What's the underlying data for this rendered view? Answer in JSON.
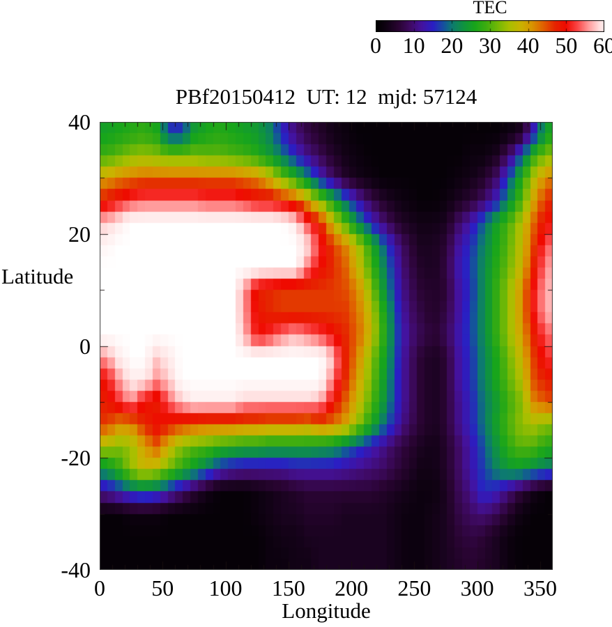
{
  "figure": {
    "title": "PBf20150412  UT: 12  mjd: 57124",
    "xlabel": "Longitude",
    "ylabel": "Latitude",
    "colorbar_title": "TEC"
  },
  "chart_data": {
    "type": "heatmap",
    "title": "PBf20150412  UT: 12  mjd: 57124",
    "xlabel": "Longitude",
    "ylabel": "Latitude",
    "colorbar_title": "TEC",
    "xlim": [
      0,
      360
    ],
    "ylim": [
      -40,
      40
    ],
    "clim": [
      0,
      60
    ],
    "x_ticks": [
      0,
      50,
      100,
      150,
      200,
      250,
      300,
      350
    ],
    "y_ticks": [
      40,
      20,
      0,
      -20,
      -40
    ],
    "x_minor_step": 10,
    "y_minor_step": 10,
    "colorbar_ticks": [
      0,
      10,
      20,
      30,
      40,
      50,
      60
    ],
    "grid": {
      "lon_start": 0,
      "lon_step": 10,
      "lat_top": 40,
      "lat_step": 4,
      "rows": 20,
      "cols": 36
    },
    "values": [
      [
        25,
        26,
        27,
        28,
        26,
        16,
        16,
        24,
        26,
        27,
        26,
        25,
        24,
        21,
        15,
        10,
        7,
        5,
        3,
        2,
        1,
        1,
        1,
        1,
        1,
        1,
        1,
        1,
        1,
        1,
        1,
        1,
        2,
        4,
        14,
        25
      ],
      [
        29,
        31,
        33,
        34,
        33,
        32,
        32,
        32,
        31,
        31,
        30,
        29,
        27,
        24,
        20,
        15,
        11,
        8,
        5,
        3,
        2,
        1,
        1,
        1,
        1,
        1,
        1,
        1,
        1,
        2,
        2,
        4,
        9,
        18,
        28,
        33
      ],
      [
        40,
        42,
        43,
        44,
        44,
        44,
        44,
        44,
        44,
        44,
        44,
        43,
        42,
        38,
        32,
        27,
        21,
        14,
        9,
        5,
        3,
        2,
        1,
        1,
        1,
        1,
        1,
        1,
        2,
        3,
        5,
        9,
        17,
        27,
        36,
        42
      ],
      [
        48,
        51,
        53,
        54,
        54,
        54,
        54,
        54,
        53,
        53,
        53,
        52,
        50,
        50,
        48,
        46,
        40,
        33,
        26,
        19,
        13,
        8,
        5,
        3,
        2,
        1,
        1,
        2,
        4,
        6,
        9,
        14,
        22,
        30,
        40,
        47
      ],
      [
        58,
        60,
        62,
        62,
        62,
        62,
        62,
        62,
        62,
        62,
        62,
        62,
        62,
        62,
        62,
        60,
        53,
        48,
        38,
        30,
        22,
        15,
        10,
        6,
        4,
        3,
        3,
        4,
        9,
        13,
        19,
        25,
        30,
        36,
        44,
        50
      ],
      [
        61,
        62,
        62,
        62,
        62,
        62,
        62,
        62,
        62,
        62,
        62,
        62,
        62,
        62,
        62,
        62,
        59,
        52,
        46,
        42,
        36,
        28,
        19,
        12,
        7,
        4,
        4,
        6,
        12,
        16,
        21,
        26,
        31,
        37,
        46,
        54
      ],
      [
        62,
        62,
        62,
        62,
        62,
        62,
        62,
        62,
        62,
        62,
        62,
        62,
        62,
        62,
        62,
        62,
        55,
        50,
        47,
        44,
        38,
        30,
        22,
        14,
        8,
        5,
        4,
        7,
        13,
        17,
        22,
        27,
        32,
        38,
        48,
        56
      ],
      [
        62,
        62,
        62,
        62,
        62,
        62,
        62,
        62,
        62,
        62,
        62,
        56,
        48,
        47,
        46,
        46,
        46,
        46,
        46,
        45,
        42,
        34,
        24,
        15,
        9,
        6,
        5,
        6,
        12,
        16,
        22,
        28,
        34,
        41,
        51,
        57
      ],
      [
        62,
        62,
        62,
        62,
        62,
        62,
        62,
        62,
        62,
        62,
        62,
        56,
        49,
        47,
        46,
        46,
        46,
        46,
        46,
        46,
        43,
        37,
        27,
        17,
        10,
        7,
        5,
        7,
        12,
        17,
        22,
        28,
        34,
        41,
        51,
        57
      ],
      [
        62,
        62,
        62,
        62,
        62,
        62,
        62,
        62,
        62,
        62,
        62,
        57,
        50,
        52,
        55,
        57,
        55,
        53,
        50,
        47,
        44,
        38,
        28,
        18,
        11,
        8,
        6,
        8,
        13,
        17,
        22,
        28,
        34,
        40,
        48,
        54
      ],
      [
        56,
        60,
        62,
        62,
        58,
        60,
        62,
        62,
        62,
        62,
        62,
        62,
        62,
        62,
        62,
        62,
        62,
        62,
        58,
        48,
        42,
        34,
        26,
        17,
        10,
        6,
        4,
        6,
        12,
        16,
        21,
        26,
        32,
        38,
        46,
        52
      ],
      [
        50,
        56,
        60,
        60,
        56,
        58,
        62,
        62,
        62,
        62,
        62,
        62,
        62,
        62,
        62,
        62,
        62,
        62,
        55,
        47,
        40,
        33,
        25,
        16,
        10,
        6,
        4,
        6,
        12,
        16,
        21,
        26,
        31,
        36,
        45,
        48
      ],
      [
        48,
        52,
        56,
        50,
        48,
        54,
        58,
        60,
        60,
        60,
        60,
        58,
        58,
        58,
        58,
        58,
        58,
        57,
        50,
        44,
        38,
        31,
        24,
        16,
        10,
        6,
        4,
        6,
        11,
        15,
        20,
        24,
        29,
        33,
        42,
        45
      ],
      [
        46,
        42,
        42,
        47,
        50,
        48,
        46,
        45,
        44,
        44,
        44,
        43,
        43,
        42,
        42,
        42,
        41,
        44,
        43,
        40,
        34,
        27,
        20,
        14,
        9,
        6,
        4,
        6,
        11,
        15,
        20,
        25,
        30,
        34,
        35,
        33
      ],
      [
        35,
        33,
        34,
        40,
        44,
        38,
        33,
        31,
        30,
        28,
        27,
        26,
        26,
        25,
        25,
        25,
        25,
        24,
        23,
        20,
        17,
        14,
        11,
        8,
        6,
        4,
        3,
        5,
        9,
        13,
        18,
        23,
        28,
        31,
        30,
        27
      ],
      [
        23,
        28,
        34,
        38,
        36,
        32,
        28,
        24,
        20,
        15,
        13,
        12,
        12,
        12,
        12,
        13,
        13,
        13,
        13,
        12,
        11,
        10,
        9,
        7,
        5,
        3,
        3,
        5,
        9,
        13,
        17,
        21,
        24,
        24,
        22,
        20
      ],
      [
        12,
        15,
        18,
        20,
        18,
        14,
        10,
        6,
        3,
        1,
        1,
        1,
        2,
        3,
        4,
        5,
        6,
        6,
        6,
        6,
        6,
        6,
        5,
        4,
        3,
        2,
        2,
        4,
        8,
        11,
        16,
        14,
        10,
        6,
        3,
        1
      ],
      [
        1,
        1,
        2,
        2,
        2,
        1,
        1,
        1,
        1,
        1,
        1,
        1,
        2,
        3,
        4,
        4,
        5,
        5,
        5,
        4,
        4,
        4,
        4,
        3,
        2,
        2,
        3,
        4,
        7,
        9,
        10,
        8,
        5,
        2,
        1,
        1
      ],
      [
        1,
        1,
        1,
        1,
        1,
        1,
        1,
        1,
        1,
        1,
        1,
        1,
        1,
        2,
        3,
        3,
        4,
        4,
        4,
        4,
        4,
        4,
        4,
        3,
        2,
        2,
        3,
        4,
        6,
        7,
        6,
        4,
        2,
        1,
        1,
        1
      ],
      [
        1,
        1,
        1,
        1,
        1,
        1,
        1,
        1,
        1,
        1,
        1,
        1,
        1,
        2,
        2,
        3,
        3,
        4,
        4,
        4,
        4,
        4,
        4,
        3,
        2,
        2,
        3,
        4,
        5,
        6,
        5,
        4,
        2,
        1,
        1,
        1
      ]
    ],
    "palette_stops": [
      [
        0,
        "#000000"
      ],
      [
        3,
        "#120216"
      ],
      [
        6,
        "#2a0433"
      ],
      [
        9,
        "#3f0a63"
      ],
      [
        12,
        "#44129e"
      ],
      [
        15,
        "#2a1ec4"
      ],
      [
        18,
        "#14549b"
      ],
      [
        20,
        "#0d7a70"
      ],
      [
        23,
        "#0f9340"
      ],
      [
        26,
        "#18a51b"
      ],
      [
        29,
        "#3dad10"
      ],
      [
        32,
        "#72b806"
      ],
      [
        35,
        "#a8bf00"
      ],
      [
        38,
        "#c9b300"
      ],
      [
        41,
        "#d89500"
      ],
      [
        44,
        "#e06000"
      ],
      [
        47,
        "#e52600"
      ],
      [
        50,
        "#ef0a00"
      ],
      [
        53,
        "#fa4646"
      ],
      [
        56,
        "#ff9c9c"
      ],
      [
        59,
        "#ffe2e2"
      ],
      [
        62,
        "#ffffff"
      ]
    ],
    "axis_color": "#3c3c3c"
  }
}
